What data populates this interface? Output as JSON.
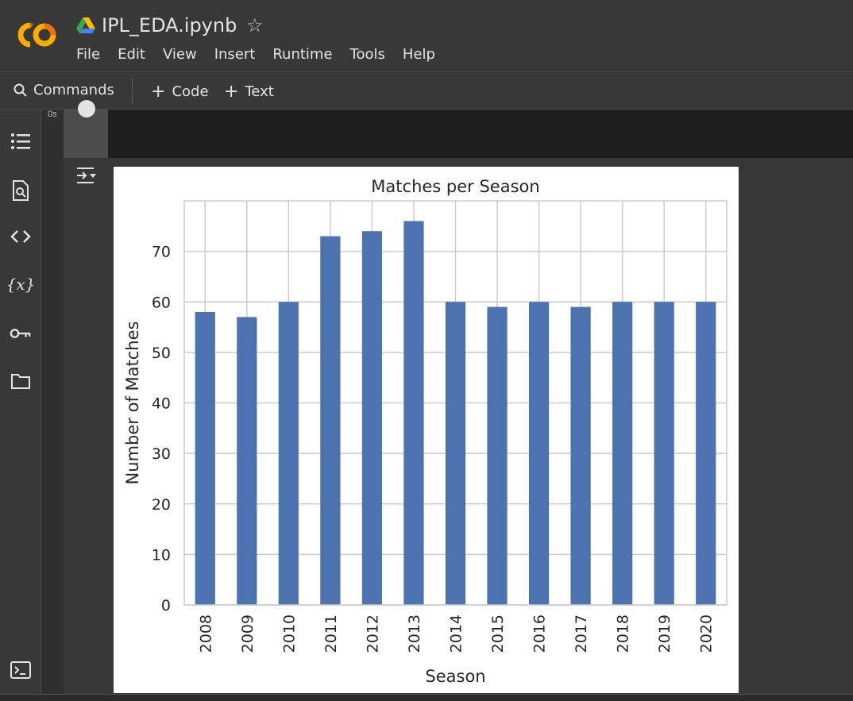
{
  "header": {
    "file_name": "IPL_EDA.ipynb",
    "menu": [
      "File",
      "Edit",
      "View",
      "Insert",
      "Runtime",
      "Tools",
      "Help"
    ]
  },
  "toolbar": {
    "commands_label": "Commands",
    "code_label": "Code",
    "text_label": "Text"
  },
  "cell": {
    "exec_time": "0s"
  },
  "sidebar": {
    "icons": [
      "table-of-contents-icon",
      "find-icon",
      "code-snippets-icon",
      "variables-icon",
      "secrets-key-icon",
      "folder-icon",
      "terminal-icon"
    ]
  },
  "chart_data": {
    "type": "bar",
    "title": "Matches per Season",
    "xlabel": "Season",
    "ylabel": "Number of Matches",
    "categories": [
      "2008",
      "2009",
      "2010",
      "2011",
      "2012",
      "2013",
      "2014",
      "2015",
      "2016",
      "2017",
      "2018",
      "2019",
      "2020"
    ],
    "values": [
      58,
      57,
      60,
      73,
      74,
      76,
      60,
      59,
      60,
      59,
      60,
      60,
      60
    ],
    "ylim": [
      0,
      80
    ],
    "yticks": [
      0,
      10,
      20,
      30,
      40,
      50,
      60,
      70
    ],
    "grid": true,
    "bar_color": "#4c72b0"
  }
}
